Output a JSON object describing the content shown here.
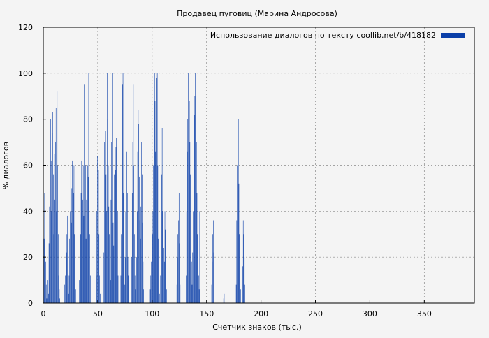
{
  "chart_data": {
    "type": "bar",
    "title": "Продавец пуговиц (Марина Андросова)",
    "xlabel": "Счетчик знаков (тыс.)",
    "ylabel": "% диалогов",
    "xlim": [
      0,
      396
    ],
    "ylim": [
      0,
      120
    ],
    "x_ticks": [
      "0",
      "50",
      "100",
      "150",
      "200",
      "250",
      "300",
      "350"
    ],
    "y_ticks": [
      "0",
      "20",
      "40",
      "60",
      "80",
      "100",
      "120"
    ],
    "grid": true,
    "legend_position": "top-right",
    "bar_color": "#0b3fa8",
    "series": [
      {
        "name": "Использование диалогов по тексту  coollib.net/b/418182",
        "x_step": 0.5,
        "values": [
          0,
          28,
          48,
          36,
          18,
          8,
          2,
          10,
          0,
          4,
          26,
          42,
          58,
          80,
          62,
          40,
          74,
          83,
          56,
          30,
          65,
          45,
          70,
          85,
          40,
          92,
          60,
          30,
          12,
          6,
          2,
          0,
          0,
          0,
          0,
          0,
          0,
          0,
          0,
          8,
          12,
          0,
          22,
          30,
          38,
          18,
          4,
          12,
          28,
          40,
          60,
          35,
          50,
          62,
          20,
          48,
          60,
          30,
          10,
          6,
          0,
          0,
          0,
          0,
          0,
          0,
          10,
          22,
          30,
          48,
          62,
          58,
          45,
          60,
          38,
          95,
          100,
          60,
          28,
          45,
          85,
          60,
          55,
          100,
          40,
          30,
          12,
          0,
          0,
          0,
          0,
          0,
          0,
          0,
          0,
          0,
          0,
          12,
          40,
          64,
          60,
          58,
          30,
          12,
          4,
          0,
          0,
          0,
          0,
          0,
          0,
          22,
          70,
          98,
          75,
          56,
          40,
          100,
          80,
          60,
          42,
          30,
          20,
          10,
          45,
          70,
          90,
          100,
          35,
          25,
          56,
          80,
          58,
          68,
          72,
          90,
          40,
          12,
          0,
          0,
          0,
          0,
          12,
          30,
          58,
          95,
          100,
          48,
          20,
          8,
          20,
          40,
          58,
          66,
          48,
          20,
          12,
          0,
          0,
          0,
          0,
          0,
          20,
          48,
          70,
          95,
          60,
          30,
          12,
          6,
          0,
          20,
          40,
          66,
          84,
          78,
          55,
          36,
          28,
          42,
          70,
          56,
          35,
          18,
          6,
          0,
          0,
          0,
          0,
          0,
          0,
          0,
          0,
          0,
          0,
          0,
          6,
          12,
          18,
          22,
          30,
          40,
          60,
          78,
          100,
          88,
          66,
          70,
          98,
          100,
          60,
          28,
          12,
          4,
          0,
          12,
          30,
          56,
          76,
          40,
          28,
          24,
          18,
          40,
          32,
          12,
          6,
          0,
          0,
          0,
          0,
          0,
          0,
          0,
          0,
          0,
          0,
          0,
          0,
          0,
          0,
          0,
          0,
          0,
          0,
          8,
          20,
          30,
          36,
          48,
          26,
          8,
          0,
          0,
          0,
          0,
          0,
          0,
          0,
          0,
          0,
          0,
          12,
          40,
          66,
          80,
          100,
          98,
          88,
          70,
          56,
          32,
          18,
          8,
          22,
          40,
          60,
          82,
          90,
          100,
          96,
          70,
          48,
          30,
          24,
          12,
          6,
          40,
          24,
          0,
          0,
          0,
          0,
          0,
          0,
          0,
          0,
          0,
          0,
          0,
          0,
          0,
          0,
          0,
          0,
          0,
          0,
          0,
          0,
          8,
          18,
          30,
          36,
          22,
          0,
          0,
          0,
          0,
          0,
          0,
          0,
          0,
          0,
          0,
          0,
          0,
          0,
          0,
          0,
          0,
          0,
          2,
          4,
          0,
          0,
          0,
          0,
          0,
          0,
          0,
          0,
          0,
          0,
          0,
          0,
          0,
          0,
          0,
          0,
          0,
          0,
          0,
          0,
          0,
          8,
          36,
          60,
          100,
          80,
          52,
          30,
          12,
          6,
          0,
          0,
          4,
          16,
          36,
          30,
          20,
          8,
          0,
          0,
          0,
          0,
          0,
          0,
          0,
          0,
          0,
          0,
          0,
          0,
          0,
          0,
          0,
          0,
          0,
          0,
          0,
          0,
          0,
          0,
          0,
          0,
          0,
          0,
          0,
          0,
          0,
          0,
          0,
          0,
          0,
          0,
          0,
          0,
          0,
          0,
          0,
          0,
          0,
          0,
          0,
          0,
          0,
          0,
          0,
          0,
          0,
          0,
          0,
          0,
          0,
          0,
          0,
          0,
          0,
          0,
          0,
          0,
          0,
          0,
          0,
          0,
          0,
          0,
          0,
          0,
          0,
          0,
          0,
          0,
          0,
          0,
          0,
          0,
          0,
          0,
          0,
          0,
          0,
          0,
          0,
          0,
          0,
          0,
          0,
          0,
          0,
          0,
          0,
          0,
          0,
          0,
          0,
          0,
          0,
          0,
          0,
          0,
          0,
          0,
          0,
          0,
          0,
          0,
          0,
          0,
          0,
          0,
          0,
          0,
          0,
          0,
          0,
          0,
          0,
          0,
          0,
          0,
          0,
          0,
          0,
          0,
          0,
          0,
          0,
          0,
          0,
          0,
          0,
          0,
          0,
          0,
          0,
          0,
          0,
          0,
          0,
          0,
          0,
          0,
          0,
          0,
          0,
          0,
          0,
          0,
          0,
          0,
          0,
          0,
          0,
          0,
          0,
          0,
          0,
          0,
          0,
          0,
          0,
          0,
          0,
          0,
          0,
          0,
          0,
          0,
          0,
          0,
          0,
          0,
          0,
          0,
          0,
          0,
          0,
          0,
          0,
          0,
          0,
          0,
          0,
          0,
          0,
          0,
          0,
          0,
          0,
          0,
          0,
          0,
          0,
          0,
          0,
          0,
          0,
          0,
          0,
          0,
          0,
          0,
          0,
          0,
          0,
          0,
          0,
          0,
          0,
          0,
          0,
          0,
          0,
          0,
          0,
          0,
          0,
          0,
          0,
          0,
          0,
          0,
          0,
          0,
          0,
          0,
          0,
          0,
          0,
          0,
          0,
          0,
          0,
          0,
          0,
          0,
          0,
          0,
          0,
          0,
          0,
          0,
          0,
          0,
          0,
          0,
          0,
          0,
          0,
          0,
          0,
          0,
          0,
          0,
          0,
          0,
          0,
          0,
          0,
          0,
          0,
          0,
          0,
          0,
          0,
          0,
          0,
          0,
          0,
          0,
          0,
          0,
          0,
          0,
          0,
          0,
          0,
          0,
          0,
          0,
          0,
          0,
          0,
          0,
          0,
          0,
          0,
          0,
          0,
          0,
          0,
          0,
          0,
          0,
          0,
          0,
          0,
          0,
          0,
          0,
          0,
          0,
          0,
          0,
          0,
          0,
          0,
          0,
          0,
          0,
          0,
          0,
          0,
          0,
          0,
          0,
          0,
          0,
          0,
          0,
          0,
          0,
          0,
          0,
          0,
          0,
          0,
          0,
          0,
          0,
          0,
          0,
          0,
          0,
          0,
          0,
          0,
          0,
          0,
          0,
          0,
          0,
          0,
          0,
          0,
          0,
          0,
          0,
          0,
          0,
          0,
          0,
          0,
          0,
          0,
          0,
          0,
          0,
          0,
          0,
          0,
          0,
          0,
          0,
          0,
          0,
          0,
          0,
          0,
          0,
          0,
          0,
          0,
          0,
          0,
          0,
          0,
          0,
          0,
          0,
          0,
          0,
          0,
          0,
          0,
          0,
          0,
          0,
          0,
          0,
          0,
          0,
          0,
          0,
          0,
          0,
          0,
          0,
          0,
          0,
          0,
          0,
          0,
          0,
          0,
          0,
          0,
          0,
          0,
          0,
          0,
          0,
          0,
          0,
          0,
          0,
          0,
          0,
          0,
          0,
          0,
          0,
          0,
          0
        ]
      }
    ]
  }
}
